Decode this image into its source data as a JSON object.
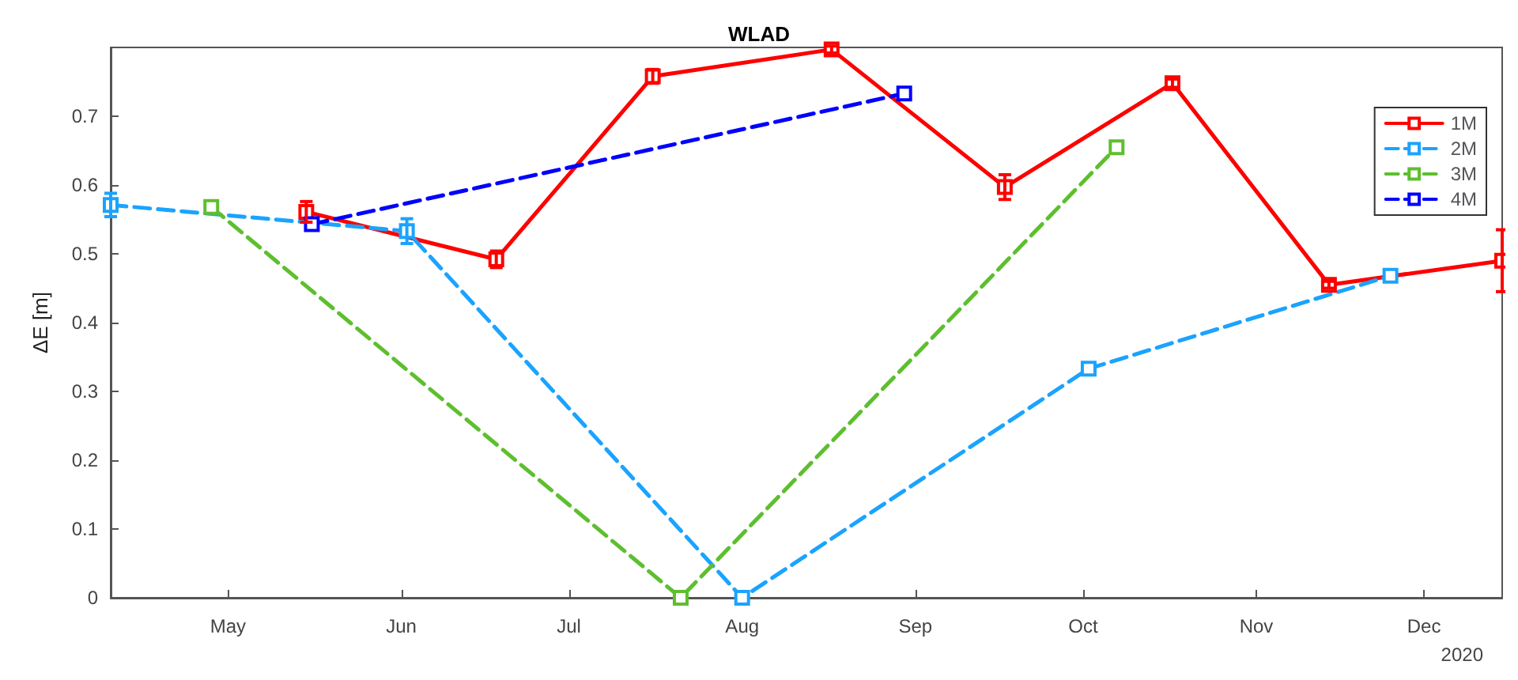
{
  "chart_data": {
    "type": "line",
    "title": "WLAD",
    "ylabel": "ΔE [m]",
    "annotations": [
      "2020"
    ],
    "xlim": [
      "2020-04-10",
      "2020-12-15"
    ],
    "xticks": [
      {
        "value": "2020-05-01",
        "label": "May"
      },
      {
        "value": "2020-06-01",
        "label": "Jun"
      },
      {
        "value": "2020-07-01",
        "label": "Jul"
      },
      {
        "value": "2020-08-01",
        "label": "Aug"
      },
      {
        "value": "2020-09-01",
        "label": "Sep"
      },
      {
        "value": "2020-10-01",
        "label": "Oct"
      },
      {
        "value": "2020-11-01",
        "label": "Nov"
      },
      {
        "value": "2020-12-01",
        "label": "Dec"
      }
    ],
    "ylim": [
      0,
      0.8
    ],
    "yticks": [
      0,
      0.1,
      0.2,
      0.3,
      0.4,
      0.5,
      0.6,
      0.7
    ],
    "grid": false,
    "legend": "top right",
    "marker": "square",
    "series": [
      {
        "name": "1M",
        "color": "#ff0000",
        "line_style": "solid",
        "x": [
          "2020-05-15",
          "2020-06-18",
          "2020-07-16",
          "2020-08-17",
          "2020-09-17",
          "2020-10-17",
          "2020-11-14",
          "2020-12-15"
        ],
        "values": [
          0.561,
          0.492,
          0.758,
          0.797,
          0.597,
          0.748,
          0.455,
          0.49
        ],
        "errors": [
          0.015,
          0.012,
          0.01,
          0.005,
          0.018,
          0.006,
          0.005,
          0.045
        ]
      },
      {
        "name": "2M",
        "color": "#1aa3ff",
        "line_style": "dashed",
        "x": [
          "2020-04-10",
          "2020-06-02",
          "2020-08-01",
          "2020-10-02",
          "2020-11-25"
        ],
        "values": [
          0.571,
          0.533,
          0,
          0.333,
          0.468
        ],
        "errors": [
          0.017,
          0.018,
          null,
          null,
          null
        ]
      },
      {
        "name": "3M",
        "color": "#5dbf2e",
        "line_style": "dashed",
        "x": [
          "2020-04-28",
          "2020-07-21",
          "2020-10-07"
        ],
        "values": [
          0.568,
          0,
          0.655
        ]
      },
      {
        "name": "4M",
        "color": "#0000ff",
        "line_style": "dashed",
        "x": [
          "2020-05-16",
          "2020-08-30"
        ],
        "values": [
          0.543,
          0.733
        ]
      }
    ]
  }
}
